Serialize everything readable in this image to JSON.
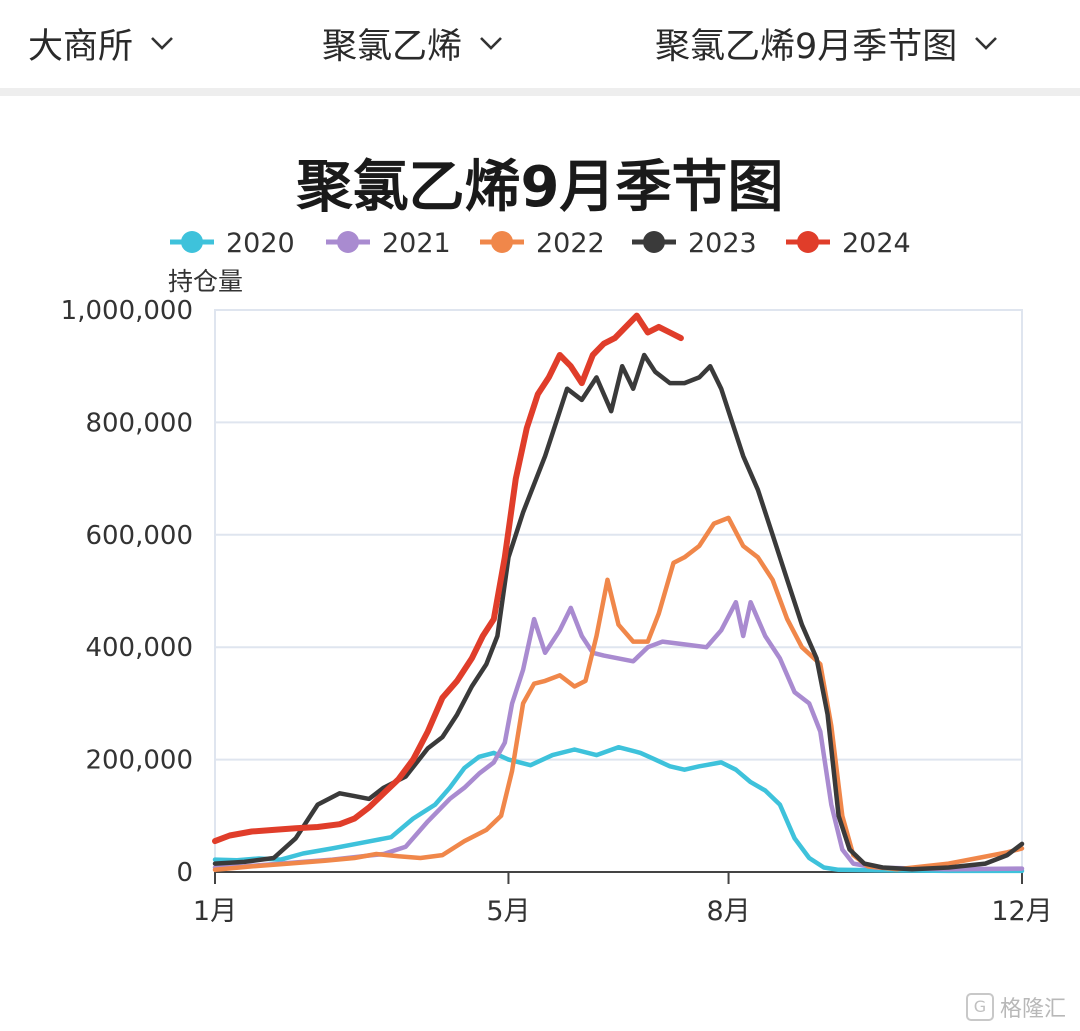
{
  "header": {
    "exchange": "大商所",
    "product": "聚氯乙烯",
    "chart_select": "聚氯乙烯9月季节图"
  },
  "watermark": "格隆汇",
  "chart_data": {
    "type": "line",
    "title": "聚氯乙烯9月季节图",
    "ylabel": "持仓量",
    "xlabel": "",
    "ylim": [
      0,
      1000000
    ],
    "yticks": [
      0,
      200000,
      400000,
      600000,
      800000,
      1000000
    ],
    "ytick_labels": [
      "0",
      "200,000",
      "400,000",
      "600,000",
      "800,000",
      "1,000,000"
    ],
    "xlim": [
      1,
      12
    ],
    "xticks": [
      1,
      5,
      8,
      12
    ],
    "xtick_labels": [
      "1月",
      "5月",
      "8月",
      "12月"
    ],
    "grid": true,
    "legend": "top",
    "series": [
      {
        "name": "2020",
        "color": "#3ec2db",
        "points": [
          [
            1.0,
            22000
          ],
          [
            1.3,
            21000
          ],
          [
            1.6,
            24000
          ],
          [
            1.9,
            22000
          ],
          [
            2.2,
            33000
          ],
          [
            2.6,
            42000
          ],
          [
            3.0,
            52000
          ],
          [
            3.4,
            62000
          ],
          [
            3.7,
            95000
          ],
          [
            4.0,
            120000
          ],
          [
            4.2,
            150000
          ],
          [
            4.4,
            185000
          ],
          [
            4.6,
            205000
          ],
          [
            4.8,
            212000
          ],
          [
            5.0,
            200000
          ],
          [
            5.3,
            190000
          ],
          [
            5.6,
            208000
          ],
          [
            5.9,
            218000
          ],
          [
            6.2,
            208000
          ],
          [
            6.5,
            222000
          ],
          [
            6.8,
            212000
          ],
          [
            7.0,
            200000
          ],
          [
            7.2,
            188000
          ],
          [
            7.4,
            182000
          ],
          [
            7.6,
            188000
          ],
          [
            7.9,
            195000
          ],
          [
            8.1,
            182000
          ],
          [
            8.3,
            160000
          ],
          [
            8.5,
            145000
          ],
          [
            8.7,
            120000
          ],
          [
            8.9,
            60000
          ],
          [
            9.1,
            25000
          ],
          [
            9.3,
            8000
          ],
          [
            9.5,
            4000
          ],
          [
            10.0,
            3000
          ],
          [
            11.0,
            2000
          ],
          [
            12.0,
            2000
          ]
        ]
      },
      {
        "name": "2021",
        "color": "#a98bd0",
        "points": [
          [
            1.0,
            8000
          ],
          [
            1.4,
            10000
          ],
          [
            1.8,
            14000
          ],
          [
            2.2,
            18000
          ],
          [
            2.6,
            22000
          ],
          [
            3.0,
            28000
          ],
          [
            3.3,
            32000
          ],
          [
            3.6,
            45000
          ],
          [
            3.9,
            90000
          ],
          [
            4.2,
            130000
          ],
          [
            4.4,
            150000
          ],
          [
            4.6,
            175000
          ],
          [
            4.8,
            195000
          ],
          [
            4.95,
            230000
          ],
          [
            5.05,
            300000
          ],
          [
            5.2,
            360000
          ],
          [
            5.35,
            450000
          ],
          [
            5.5,
            390000
          ],
          [
            5.7,
            430000
          ],
          [
            5.85,
            470000
          ],
          [
            6.0,
            420000
          ],
          [
            6.15,
            390000
          ],
          [
            6.3,
            385000
          ],
          [
            6.5,
            380000
          ],
          [
            6.7,
            375000
          ],
          [
            6.9,
            400000
          ],
          [
            7.1,
            410000
          ],
          [
            7.4,
            405000
          ],
          [
            7.7,
            400000
          ],
          [
            7.9,
            430000
          ],
          [
            8.1,
            480000
          ],
          [
            8.2,
            420000
          ],
          [
            8.3,
            480000
          ],
          [
            8.5,
            420000
          ],
          [
            8.7,
            380000
          ],
          [
            8.9,
            320000
          ],
          [
            9.1,
            300000
          ],
          [
            9.25,
            250000
          ],
          [
            9.4,
            120000
          ],
          [
            9.55,
            40000
          ],
          [
            9.7,
            15000
          ],
          [
            10.0,
            8000
          ],
          [
            11.0,
            5000
          ],
          [
            12.0,
            6000
          ]
        ]
      },
      {
        "name": "2022",
        "color": "#f0874a",
        "points": [
          [
            1.0,
            4000
          ],
          [
            1.5,
            10000
          ],
          [
            2.0,
            15000
          ],
          [
            2.5,
            20000
          ],
          [
            2.9,
            25000
          ],
          [
            3.2,
            32000
          ],
          [
            3.5,
            28000
          ],
          [
            3.8,
            25000
          ],
          [
            4.1,
            30000
          ],
          [
            4.4,
            55000
          ],
          [
            4.7,
            75000
          ],
          [
            4.9,
            100000
          ],
          [
            5.05,
            180000
          ],
          [
            5.2,
            300000
          ],
          [
            5.35,
            335000
          ],
          [
            5.5,
            340000
          ],
          [
            5.7,
            350000
          ],
          [
            5.9,
            330000
          ],
          [
            6.05,
            340000
          ],
          [
            6.2,
            420000
          ],
          [
            6.35,
            520000
          ],
          [
            6.5,
            440000
          ],
          [
            6.7,
            410000
          ],
          [
            6.9,
            410000
          ],
          [
            7.05,
            460000
          ],
          [
            7.25,
            550000
          ],
          [
            7.4,
            560000
          ],
          [
            7.6,
            580000
          ],
          [
            7.8,
            620000
          ],
          [
            8.0,
            630000
          ],
          [
            8.2,
            580000
          ],
          [
            8.4,
            560000
          ],
          [
            8.6,
            520000
          ],
          [
            8.8,
            450000
          ],
          [
            9.0,
            400000
          ],
          [
            9.25,
            370000
          ],
          [
            9.4,
            260000
          ],
          [
            9.55,
            100000
          ],
          [
            9.7,
            30000
          ],
          [
            9.9,
            10000
          ],
          [
            10.3,
            5000
          ],
          [
            11.0,
            15000
          ],
          [
            11.4,
            25000
          ],
          [
            11.8,
            35000
          ],
          [
            12.0,
            42000
          ]
        ]
      },
      {
        "name": "2023",
        "color": "#3a3a3a",
        "points": [
          [
            1.0,
            15000
          ],
          [
            1.4,
            18000
          ],
          [
            1.8,
            25000
          ],
          [
            2.1,
            60000
          ],
          [
            2.4,
            120000
          ],
          [
            2.7,
            140000
          ],
          [
            2.9,
            135000
          ],
          [
            3.1,
            130000
          ],
          [
            3.3,
            150000
          ],
          [
            3.6,
            170000
          ],
          [
            3.9,
            220000
          ],
          [
            4.1,
            240000
          ],
          [
            4.3,
            280000
          ],
          [
            4.5,
            330000
          ],
          [
            4.7,
            370000
          ],
          [
            4.85,
            420000
          ],
          [
            5.0,
            560000
          ],
          [
            5.2,
            640000
          ],
          [
            5.35,
            690000
          ],
          [
            5.5,
            740000
          ],
          [
            5.65,
            800000
          ],
          [
            5.8,
            860000
          ],
          [
            6.0,
            840000
          ],
          [
            6.2,
            880000
          ],
          [
            6.4,
            820000
          ],
          [
            6.55,
            900000
          ],
          [
            6.7,
            860000
          ],
          [
            6.85,
            920000
          ],
          [
            7.0,
            890000
          ],
          [
            7.2,
            870000
          ],
          [
            7.4,
            870000
          ],
          [
            7.6,
            880000
          ],
          [
            7.75,
            900000
          ],
          [
            7.9,
            860000
          ],
          [
            8.05,
            800000
          ],
          [
            8.2,
            740000
          ],
          [
            8.4,
            680000
          ],
          [
            8.6,
            600000
          ],
          [
            8.8,
            520000
          ],
          [
            9.0,
            440000
          ],
          [
            9.2,
            380000
          ],
          [
            9.35,
            280000
          ],
          [
            9.5,
            100000
          ],
          [
            9.65,
            40000
          ],
          [
            9.85,
            15000
          ],
          [
            10.1,
            8000
          ],
          [
            10.5,
            5000
          ],
          [
            11.0,
            8000
          ],
          [
            11.5,
            15000
          ],
          [
            11.8,
            30000
          ],
          [
            12.0,
            50000
          ]
        ]
      },
      {
        "name": "2024",
        "color": "#e03d2a",
        "points": [
          [
            1.0,
            55000
          ],
          [
            1.2,
            65000
          ],
          [
            1.5,
            72000
          ],
          [
            1.8,
            75000
          ],
          [
            2.1,
            78000
          ],
          [
            2.4,
            80000
          ],
          [
            2.7,
            85000
          ],
          [
            2.9,
            95000
          ],
          [
            3.1,
            115000
          ],
          [
            3.3,
            140000
          ],
          [
            3.5,
            165000
          ],
          [
            3.7,
            200000
          ],
          [
            3.9,
            250000
          ],
          [
            4.1,
            310000
          ],
          [
            4.3,
            340000
          ],
          [
            4.5,
            380000
          ],
          [
            4.65,
            420000
          ],
          [
            4.8,
            450000
          ],
          [
            4.95,
            560000
          ],
          [
            5.1,
            700000
          ],
          [
            5.25,
            790000
          ],
          [
            5.4,
            850000
          ],
          [
            5.55,
            880000
          ],
          [
            5.7,
            920000
          ],
          [
            5.85,
            900000
          ],
          [
            6.0,
            870000
          ],
          [
            6.15,
            920000
          ],
          [
            6.3,
            940000
          ],
          [
            6.45,
            950000
          ],
          [
            6.6,
            970000
          ],
          [
            6.75,
            990000
          ],
          [
            6.9,
            960000
          ],
          [
            7.05,
            970000
          ],
          [
            7.2,
            960000
          ],
          [
            7.35,
            950000
          ]
        ]
      }
    ]
  }
}
